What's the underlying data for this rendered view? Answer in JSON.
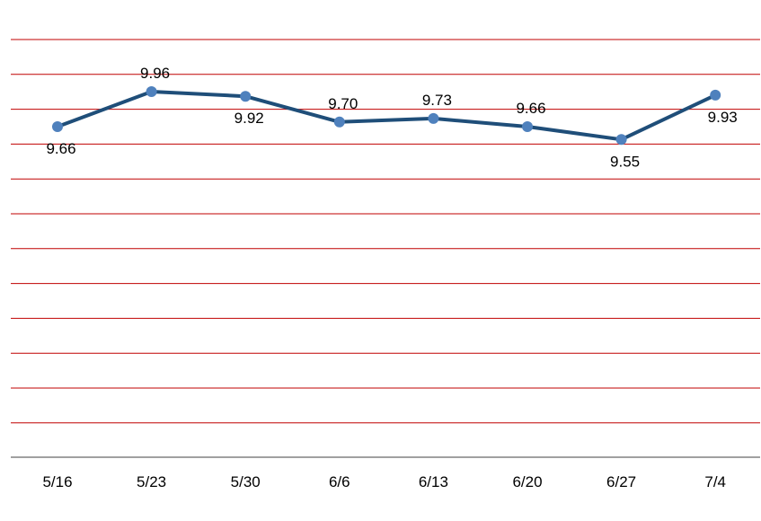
{
  "chart_data": {
    "type": "line",
    "categories": [
      "5/16",
      "5/23",
      "5/30",
      "6/6",
      "6/13",
      "6/20",
      "6/27",
      "7/4"
    ],
    "series": [
      {
        "values": [
          9.66,
          9.96,
          9.92,
          9.7,
          9.73,
          9.66,
          9.55,
          9.93
        ],
        "labels": [
          "9.66",
          "9.96",
          "9.92",
          "9.70",
          "9.73",
          "9.66",
          "9.55",
          "9.93"
        ],
        "label_positions": [
          "below",
          "above",
          "below",
          "above",
          "above",
          "above",
          "below",
          "below"
        ]
      }
    ],
    "grid": true,
    "legend": "none",
    "title": "",
    "xlabel": "",
    "ylabel": "",
    "colors": {
      "line": "#1f4e79",
      "marker": "#4f81bd",
      "grid": "#c00000",
      "axis": "#808080"
    }
  }
}
